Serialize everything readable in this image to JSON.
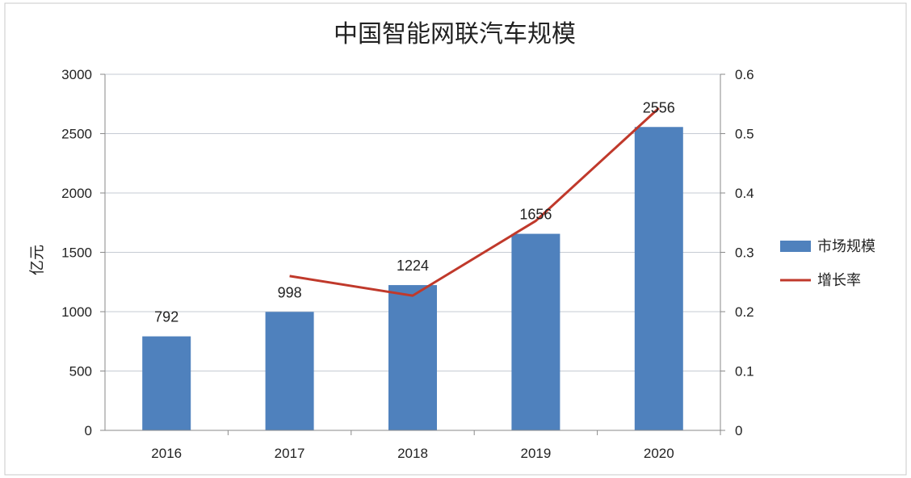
{
  "chart_data": {
    "type": "bar",
    "title": "中国智能网联汽车规模",
    "ylabel": "亿元",
    "ylim": [
      0,
      3000
    ],
    "y2lim": [
      0,
      0.6
    ],
    "yticks": [
      "0",
      "500",
      "1000",
      "1500",
      "2000",
      "2500",
      "3000"
    ],
    "y2ticks": [
      "0",
      "0.1",
      "0.2",
      "0.3",
      "0.4",
      "0.5",
      "0.6"
    ],
    "categories": [
      "2016",
      "2017",
      "2018",
      "2019",
      "2020"
    ],
    "grid": true,
    "legend_position": "right",
    "series": [
      {
        "name": "市场规模",
        "kind": "bar",
        "axis": "left",
        "color": "#4F81BD",
        "values": [
          792,
          998,
          1224,
          1656,
          2556
        ],
        "labels": [
          "792",
          "998",
          "1224",
          "1656",
          "2556"
        ]
      },
      {
        "name": "增长率",
        "kind": "line",
        "axis": "right",
        "color": "#C0392B",
        "values": [
          null,
          0.26,
          0.227,
          0.353,
          0.543
        ]
      }
    ]
  }
}
